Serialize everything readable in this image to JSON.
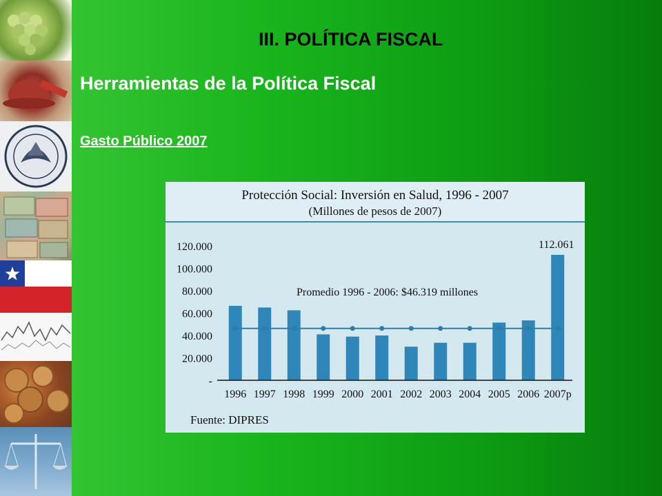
{
  "slide": {
    "title": "III. POLÍTICA FISCAL",
    "subtitle": "Herramientas de la Política Fiscal",
    "section": "Gasto Público 2007"
  },
  "left_strip": {
    "photos": [
      "grapes-photo",
      "hard-hat-photo",
      "central-bank-seal-photo",
      "banknotes-photo",
      "chilean-flag-photo",
      "stock-chart-photo",
      "coins-photo",
      "justice-scale-photo"
    ],
    "flag_colors": {
      "blue": "#1f3f9a",
      "white": "#ffffff",
      "red": "#d5232a"
    }
  },
  "chart_data": {
    "type": "bar",
    "title": "Protección Social: Inversión en Salud, 1996 - 2007",
    "subtitle": "(Millones de pesos de 2007)",
    "categories": [
      "1996",
      "1997",
      "1998",
      "1999",
      "2000",
      "2001",
      "2002",
      "2003",
      "2004",
      "2005",
      "2006",
      "2007p"
    ],
    "series": [
      {
        "values": [
          66500,
          65000,
          62500,
          41000,
          39000,
          40000,
          30000,
          33500,
          33500,
          51500,
          53500,
          112061
        ]
      }
    ],
    "average": {
      "label": "Promedio 1996 - 2006: $46.319 millones",
      "value": 46319
    },
    "data_labels": [
      {
        "category": "2007p",
        "text": "112.061"
      }
    ],
    "yticks": [
      "120.000",
      "100.000",
      "80.000",
      "60.000",
      "40.000",
      "20.000",
      "-"
    ],
    "ytick_values": [
      120000,
      100000,
      80000,
      60000,
      40000,
      20000,
      0
    ],
    "ylim": [
      0,
      120000
    ],
    "source": "Fuente: DIPRES",
    "colors": {
      "bar": "#2f86b8",
      "line": "#2d7ea7",
      "background": "#d4e8ef",
      "title_band": "#dfeef4",
      "rule": "#3c8bb8"
    },
    "grid": false,
    "legend": "none"
  }
}
